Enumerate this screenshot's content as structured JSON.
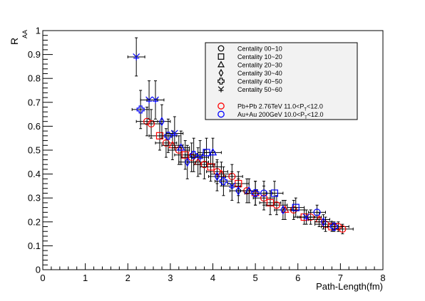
{
  "chart_data": {
    "type": "scatter",
    "title": "",
    "xlabel": "Path-Length(fm)",
    "ylabel_main": "R",
    "ylabel_sub": "AA",
    "xlim": [
      0,
      8
    ],
    "ylim": [
      0,
      1
    ],
    "x_ticks": [
      "0",
      "1",
      "2",
      "3",
      "4",
      "5",
      "6",
      "7",
      "8"
    ],
    "y_ticks": [
      "0",
      "0.1",
      "0.2",
      "0.3",
      "0.4",
      "0.5",
      "0.6",
      "0.7",
      "0.8",
      "0.9",
      "1"
    ],
    "grid": false,
    "legend_position": "top-right",
    "legend": {
      "shape_entries": [
        {
          "marker": "circle",
          "label": "Centality 00~10"
        },
        {
          "marker": "square",
          "label": "Centality 10~20"
        },
        {
          "marker": "triangle",
          "label": "Centality 20~30"
        },
        {
          "marker": "diamond",
          "label": "Centality 30~40"
        },
        {
          "marker": "cross",
          "label": "Centality 40~50"
        },
        {
          "marker": "star",
          "label": "Centality 50~60"
        }
      ],
      "color_entries": [
        {
          "color": "#ff0000",
          "label_pre": "Pb+Pb 2.76TeV 11.0<P",
          "label_sub": "T",
          "label_post": "<12.0"
        },
        {
          "color": "#0000ff",
          "label_pre": "Au+Au 200GeV 10.0<P",
          "label_sub": "T",
          "label_post": "<12.0"
        }
      ]
    },
    "series": [
      {
        "name": "Pb+Pb 2.76TeV",
        "color": "#ff0000",
        "points": [
          {
            "x": 2.45,
            "y": 0.62,
            "xerr": 0.25,
            "yerr": 0.06,
            "marker": "circle"
          },
          {
            "x": 2.55,
            "y": 0.61,
            "xerr": 0.25,
            "yerr": 0.06,
            "marker": "circle"
          },
          {
            "x": 2.75,
            "y": 0.56,
            "xerr": 0.25,
            "yerr": 0.06,
            "marker": "square"
          },
          {
            "x": 2.9,
            "y": 0.53,
            "xerr": 0.25,
            "yerr": 0.06,
            "marker": "circle"
          },
          {
            "x": 3.05,
            "y": 0.52,
            "xerr": 0.25,
            "yerr": 0.06,
            "marker": "triangle"
          },
          {
            "x": 3.2,
            "y": 0.5,
            "xerr": 0.25,
            "yerr": 0.06,
            "marker": "circle"
          },
          {
            "x": 3.35,
            "y": 0.48,
            "xerr": 0.25,
            "yerr": 0.06,
            "marker": "square"
          },
          {
            "x": 3.5,
            "y": 0.47,
            "xerr": 0.25,
            "yerr": 0.06,
            "marker": "circle"
          },
          {
            "x": 3.65,
            "y": 0.45,
            "xerr": 0.25,
            "yerr": 0.06,
            "marker": "triangle"
          },
          {
            "x": 3.8,
            "y": 0.44,
            "xerr": 0.25,
            "yerr": 0.06,
            "marker": "circle"
          },
          {
            "x": 3.95,
            "y": 0.43,
            "xerr": 0.25,
            "yerr": 0.06,
            "marker": "square"
          },
          {
            "x": 4.1,
            "y": 0.41,
            "xerr": 0.25,
            "yerr": 0.05,
            "marker": "circle"
          },
          {
            "x": 4.2,
            "y": 0.4,
            "xerr": 0.25,
            "yerr": 0.05,
            "marker": "triangle"
          },
          {
            "x": 4.45,
            "y": 0.39,
            "xerr": 0.25,
            "yerr": 0.05,
            "marker": "circle"
          },
          {
            "x": 4.6,
            "y": 0.36,
            "xerr": 0.25,
            "yerr": 0.05,
            "marker": "square"
          },
          {
            "x": 4.8,
            "y": 0.33,
            "xerr": 0.25,
            "yerr": 0.05,
            "marker": "circle"
          },
          {
            "x": 5.0,
            "y": 0.32,
            "xerr": 0.25,
            "yerr": 0.05,
            "marker": "triangle"
          },
          {
            "x": 5.2,
            "y": 0.3,
            "xerr": 0.25,
            "yerr": 0.05,
            "marker": "circle"
          },
          {
            "x": 5.35,
            "y": 0.28,
            "xerr": 0.25,
            "yerr": 0.05,
            "marker": "square"
          },
          {
            "x": 5.5,
            "y": 0.27,
            "xerr": 0.25,
            "yerr": 0.04,
            "marker": "circle"
          },
          {
            "x": 5.7,
            "y": 0.25,
            "xerr": 0.25,
            "yerr": 0.04,
            "marker": "triangle"
          },
          {
            "x": 5.9,
            "y": 0.25,
            "xerr": 0.25,
            "yerr": 0.04,
            "marker": "circle"
          },
          {
            "x": 6.15,
            "y": 0.22,
            "xerr": 0.25,
            "yerr": 0.03,
            "marker": "square"
          },
          {
            "x": 6.3,
            "y": 0.22,
            "xerr": 0.25,
            "yerr": 0.03,
            "marker": "circle"
          },
          {
            "x": 6.5,
            "y": 0.21,
            "xerr": 0.25,
            "yerr": 0.03,
            "marker": "triangle"
          },
          {
            "x": 6.65,
            "y": 0.19,
            "xerr": 0.25,
            "yerr": 0.03,
            "marker": "circle"
          },
          {
            "x": 6.8,
            "y": 0.18,
            "xerr": 0.25,
            "yerr": 0.02,
            "marker": "square"
          },
          {
            "x": 6.95,
            "y": 0.18,
            "xerr": 0.25,
            "yerr": 0.02,
            "marker": "circle"
          },
          {
            "x": 7.05,
            "y": 0.17,
            "xerr": 0.25,
            "yerr": 0.02,
            "marker": "circle"
          }
        ]
      },
      {
        "name": "Au+Au 200GeV",
        "color": "#0000ff",
        "points": [
          {
            "x": 2.2,
            "y": 0.89,
            "xerr": 0.2,
            "yerr": 0.08,
            "marker": "star"
          },
          {
            "x": 2.3,
            "y": 0.67,
            "xerr": 0.2,
            "yerr": 0.08,
            "marker": "cross"
          },
          {
            "x": 2.5,
            "y": 0.71,
            "xerr": 0.2,
            "yerr": 0.08,
            "marker": "star"
          },
          {
            "x": 2.65,
            "y": 0.71,
            "xerr": 0.2,
            "yerr": 0.08,
            "marker": "star"
          },
          {
            "x": 2.8,
            "y": 0.62,
            "xerr": 0.2,
            "yerr": 0.07,
            "marker": "diamond"
          },
          {
            "x": 2.95,
            "y": 0.56,
            "xerr": 0.2,
            "yerr": 0.07,
            "marker": "cross"
          },
          {
            "x": 3.1,
            "y": 0.57,
            "xerr": 0.2,
            "yerr": 0.07,
            "marker": "star"
          },
          {
            "x": 3.25,
            "y": 0.51,
            "xerr": 0.2,
            "yerr": 0.07,
            "marker": "triangle"
          },
          {
            "x": 3.4,
            "y": 0.45,
            "xerr": 0.2,
            "yerr": 0.07,
            "marker": "diamond"
          },
          {
            "x": 3.55,
            "y": 0.48,
            "xerr": 0.2,
            "yerr": 0.07,
            "marker": "cross"
          },
          {
            "x": 3.7,
            "y": 0.47,
            "xerr": 0.2,
            "yerr": 0.07,
            "marker": "star"
          },
          {
            "x": 3.85,
            "y": 0.49,
            "xerr": 0.2,
            "yerr": 0.06,
            "marker": "square"
          },
          {
            "x": 4.0,
            "y": 0.49,
            "xerr": 0.2,
            "yerr": 0.06,
            "marker": "triangle"
          },
          {
            "x": 4.1,
            "y": 0.39,
            "xerr": 0.2,
            "yerr": 0.06,
            "marker": "diamond"
          },
          {
            "x": 4.25,
            "y": 0.37,
            "xerr": 0.2,
            "yerr": 0.06,
            "marker": "cross"
          },
          {
            "x": 4.45,
            "y": 0.35,
            "xerr": 0.2,
            "yerr": 0.06,
            "marker": "star"
          },
          {
            "x": 4.6,
            "y": 0.33,
            "xerr": 0.2,
            "yerr": 0.05,
            "marker": "diamond"
          },
          {
            "x": 4.85,
            "y": 0.33,
            "xerr": 0.2,
            "yerr": 0.05,
            "marker": "triangle"
          },
          {
            "x": 5.0,
            "y": 0.32,
            "xerr": 0.2,
            "yerr": 0.05,
            "marker": "cross"
          },
          {
            "x": 5.2,
            "y": 0.32,
            "xerr": 0.2,
            "yerr": 0.05,
            "marker": "circle"
          },
          {
            "x": 5.45,
            "y": 0.32,
            "xerr": 0.2,
            "yerr": 0.05,
            "marker": "square"
          },
          {
            "x": 5.65,
            "y": 0.25,
            "xerr": 0.2,
            "yerr": 0.04,
            "marker": "diamond"
          },
          {
            "x": 5.95,
            "y": 0.26,
            "xerr": 0.2,
            "yerr": 0.04,
            "marker": "square"
          },
          {
            "x": 6.2,
            "y": 0.22,
            "xerr": 0.2,
            "yerr": 0.03,
            "marker": "star"
          },
          {
            "x": 6.45,
            "y": 0.24,
            "xerr": 0.2,
            "yerr": 0.03,
            "marker": "circle"
          },
          {
            "x": 6.6,
            "y": 0.2,
            "xerr": 0.2,
            "yerr": 0.03,
            "marker": "diamond"
          },
          {
            "x": 6.85,
            "y": 0.18,
            "xerr": 0.2,
            "yerr": 0.02,
            "marker": "cross"
          }
        ]
      }
    ]
  }
}
